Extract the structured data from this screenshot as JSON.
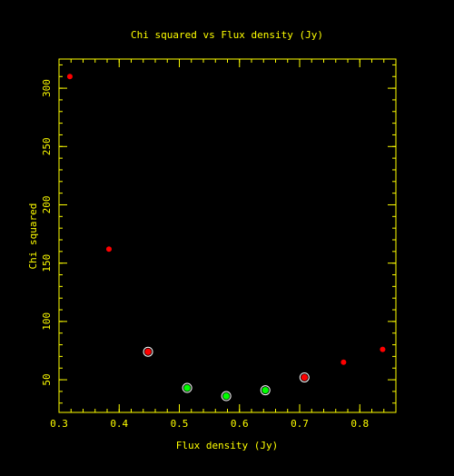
{
  "chart_data": {
    "type": "scatter",
    "title": "Chi squared vs Flux density (Jy)",
    "xlabel": "Flux density (Jy)",
    "ylabel": "Chi squared",
    "xlim": [
      0.3,
      0.86
    ],
    "ylim": [
      22,
      325
    ],
    "xticks": [
      {
        "value": 0.3,
        "label": "0.3"
      },
      {
        "value": 0.4,
        "label": "0.4"
      },
      {
        "value": 0.5,
        "label": "0.5"
      },
      {
        "value": 0.6,
        "label": "0.6"
      },
      {
        "value": 0.7,
        "label": "0.7"
      },
      {
        "value": 0.8,
        "label": "0.8"
      }
    ],
    "yticks": [
      {
        "value": 50,
        "label": "50"
      },
      {
        "value": 100,
        "label": "100"
      },
      {
        "value": 150,
        "label": "150"
      },
      {
        "value": 200,
        "label": "200"
      },
      {
        "value": 250,
        "label": "250"
      },
      {
        "value": 300,
        "label": "300"
      }
    ],
    "x_minor_step": 0.02,
    "y_minor_step": 10,
    "grid": false,
    "legend": "none",
    "points": [
      {
        "x": 0.318,
        "y": 310,
        "color": "red",
        "marker": "dot"
      },
      {
        "x": 0.383,
        "y": 162,
        "color": "red",
        "marker": "dot"
      },
      {
        "x": 0.448,
        "y": 74,
        "color": "red",
        "marker": "ringed"
      },
      {
        "x": 0.513,
        "y": 43,
        "color": "green",
        "marker": "ringed"
      },
      {
        "x": 0.578,
        "y": 36,
        "color": "green",
        "marker": "ringed"
      },
      {
        "x": 0.643,
        "y": 41,
        "color": "green",
        "marker": "ringed"
      },
      {
        "x": 0.708,
        "y": 52,
        "color": "red",
        "marker": "ringed"
      },
      {
        "x": 0.773,
        "y": 65,
        "color": "red",
        "marker": "dot"
      },
      {
        "x": 0.838,
        "y": 76,
        "color": "red",
        "marker": "dot"
      }
    ]
  },
  "colors": {
    "background": "#000000",
    "axis": "#ffff00",
    "text": "#ffff00",
    "red": "#ff0000",
    "green": "#00ff00",
    "ring": "#ffffff"
  }
}
